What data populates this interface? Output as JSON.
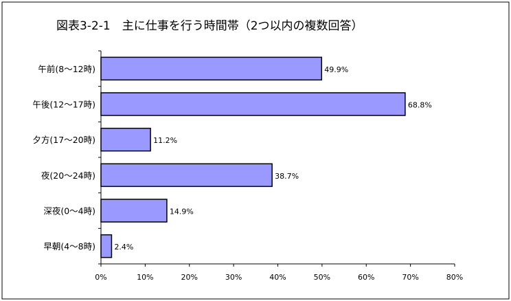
{
  "chart_data": {
    "type": "bar",
    "orientation": "horizontal",
    "title": "図表3-2-1　主に仕事を行う時間帯（2つ以内の複数回答）",
    "categories": [
      "午前(8～12時)",
      "午後(12～17時)",
      "夕方(17～20時)",
      "夜(20～24時)",
      "深夜(0～4時)",
      "早朝(4～8時)"
    ],
    "values": [
      49.9,
      68.8,
      11.2,
      38.7,
      14.9,
      2.4
    ],
    "value_labels": [
      "49.9%",
      "68.8%",
      "11.2%",
      "38.7%",
      "14.9%",
      "2.4%"
    ],
    "xlim": [
      0,
      80
    ],
    "x_ticks": [
      0,
      10,
      20,
      30,
      40,
      50,
      60,
      70,
      80
    ],
    "x_tick_labels": [
      "0%",
      "10%",
      "20%",
      "30%",
      "40%",
      "50%",
      "60%",
      "70%",
      "80%"
    ],
    "xlabel": "",
    "ylabel": "",
    "grid": false,
    "legend": "none",
    "bar_color": "#9999ff",
    "bar_edge_color": "#000000",
    "frame_color": "#000000"
  }
}
